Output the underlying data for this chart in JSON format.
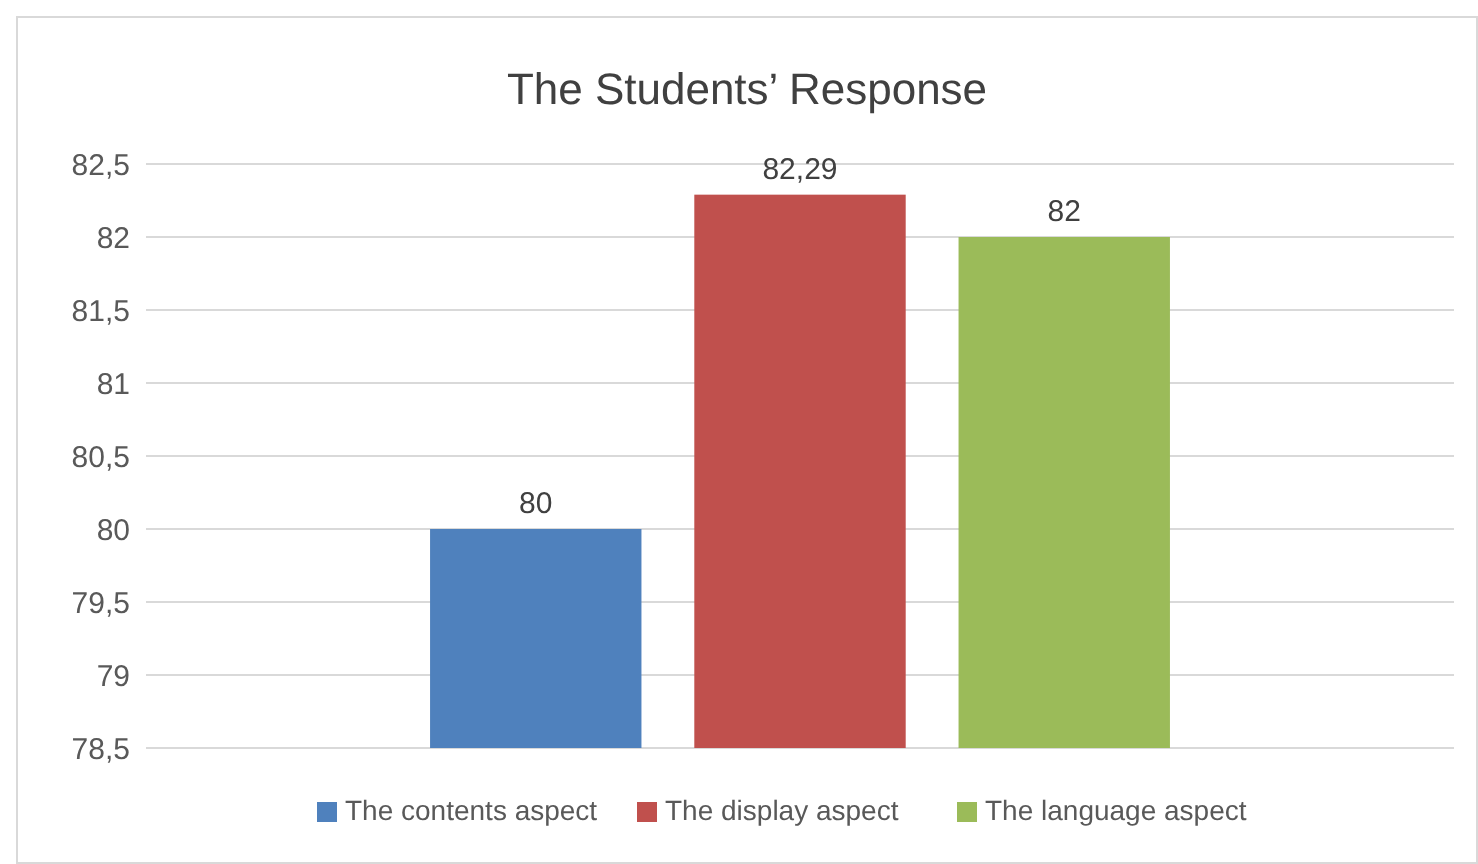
{
  "chart_data": {
    "type": "bar",
    "title": "The Students’ Response",
    "categories": [
      null
    ],
    "series": [
      {
        "name": "The contents aspect",
        "color": "#4f81bd",
        "values": [
          80
        ],
        "value_labels": [
          "80"
        ]
      },
      {
        "name": "The display aspect",
        "color": "#c0504d",
        "values": [
          82.29
        ],
        "value_labels": [
          "82,29"
        ]
      },
      {
        "name": "The language aspect",
        "color": "#9bbb59",
        "values": [
          82
        ],
        "value_labels": [
          "82"
        ]
      }
    ],
    "ylim": [
      78.5,
      82.5
    ],
    "yticks": [
      {
        "value": 78.5,
        "label": "78,5"
      },
      79,
      {
        "value": 79.5,
        "label": "79,5"
      },
      80,
      {
        "value": 80.5,
        "label": "80,5"
      },
      81,
      {
        "value": 81.5,
        "label": "81,5"
      },
      82,
      {
        "value": 82.5,
        "label": "82,5"
      }
    ],
    "grid": "y",
    "legend": "bottom"
  }
}
